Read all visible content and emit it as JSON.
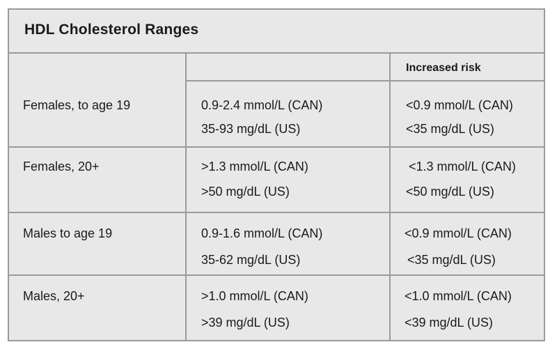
{
  "table": {
    "title": "HDL Cholesterol Ranges",
    "header": {
      "col1": "",
      "col2": "",
      "col3": "Increased risk"
    },
    "rows": [
      {
        "label": "Females, to age 19",
        "normal": [
          "0.9-2.4 mmol/L (CAN)",
          "35-93 mg/dL (US)"
        ],
        "risk": [
          "<0.9 mmol/L (CAN)",
          "<35 mg/dL (US)"
        ]
      },
      {
        "label": "Females, 20+",
        "normal": [
          ">1.3 mmol/L (CAN)",
          ">50 mg/dL (US)"
        ],
        "risk": [
          "<1.3 mmol/L (CAN)",
          "<50 mg/dL (US)"
        ]
      },
      {
        "label": "Males to age 19",
        "normal": [
          "0.9-1.6 mmol/L (CAN)",
          "35-62 mg/dL (US)"
        ],
        "risk": [
          "<0.9 mmol/L (CAN)",
          "<35 mg/dL (US)"
        ]
      },
      {
        "label": "Males, 20+",
        "normal": [
          ">1.0 mmol/L (CAN)",
          ">39 mg/dL (US)"
        ],
        "risk": [
          "<1.0 mmol/L (CAN)",
          "<39 mg/dL (US)"
        ]
      }
    ]
  }
}
